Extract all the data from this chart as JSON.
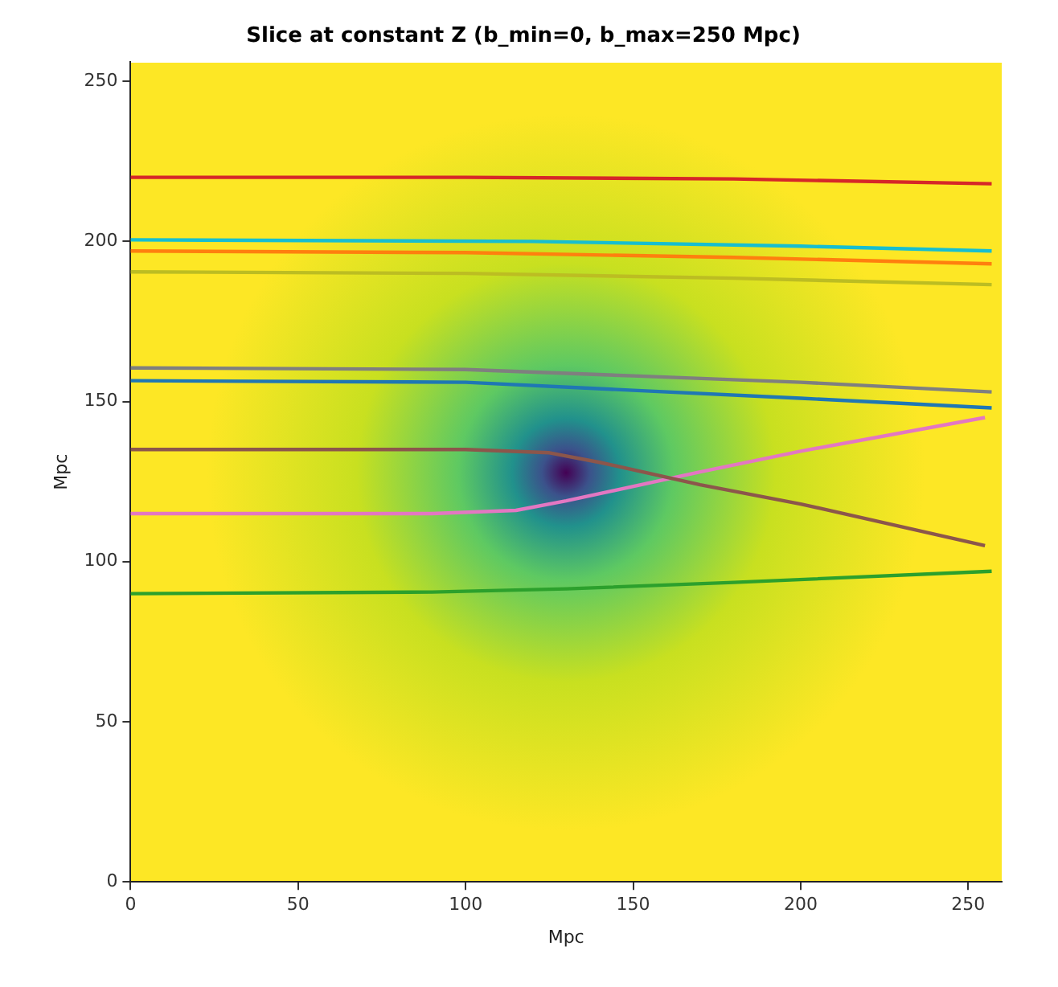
{
  "chart_data": {
    "type": "line",
    "title": "Slice at constant Z (b_min=0, b_max=250 Mpc)",
    "xlabel": "Mpc",
    "ylabel": "Mpc",
    "xlim": [
      0,
      260
    ],
    "ylim": [
      0,
      256
    ],
    "xticks": [
      0,
      50,
      100,
      150,
      200,
      250
    ],
    "yticks": [
      0,
      50,
      100,
      150,
      200,
      250
    ],
    "grid": false,
    "legend": false,
    "marker": "none",
    "line_style": "solid",
    "series": [
      {
        "color": "#d62728",
        "x": [
          0,
          100,
          180,
          257
        ],
        "values": [
          220,
          220,
          219.5,
          218
        ]
      },
      {
        "color": "#17becf",
        "x": [
          0,
          120,
          200,
          257
        ],
        "values": [
          200.5,
          200,
          198.5,
          197
        ]
      },
      {
        "color": "#ff7f0e",
        "x": [
          0,
          100,
          180,
          257
        ],
        "values": [
          197,
          196.5,
          195,
          193
        ]
      },
      {
        "color": "#bcbd22",
        "x": [
          0,
          100,
          180,
          257
        ],
        "values": [
          190.5,
          190,
          188.5,
          186.5
        ]
      },
      {
        "color": "#7f7f7f",
        "x": [
          0,
          100,
          150,
          200,
          257
        ],
        "values": [
          160.5,
          160,
          158,
          156,
          153
        ]
      },
      {
        "color": "#1f77b4",
        "x": [
          0,
          100,
          150,
          200,
          257
        ],
        "values": [
          156.5,
          156,
          153.5,
          151,
          148
        ]
      },
      {
        "color": "#8c564b",
        "x": [
          0,
          100,
          125,
          140,
          170,
          200,
          255
        ],
        "values": [
          135,
          135,
          134,
          131,
          124,
          118,
          105
        ]
      },
      {
        "color": "#e377c2",
        "x": [
          0,
          90,
          115,
          130,
          170,
          200,
          255
        ],
        "values": [
          115,
          115,
          116,
          119,
          128,
          134.5,
          145
        ]
      },
      {
        "color": "#2ca02c",
        "x": [
          0,
          90,
          130,
          180,
          257
        ],
        "values": [
          90,
          90.5,
          91.5,
          93.5,
          97
        ]
      }
    ]
  }
}
